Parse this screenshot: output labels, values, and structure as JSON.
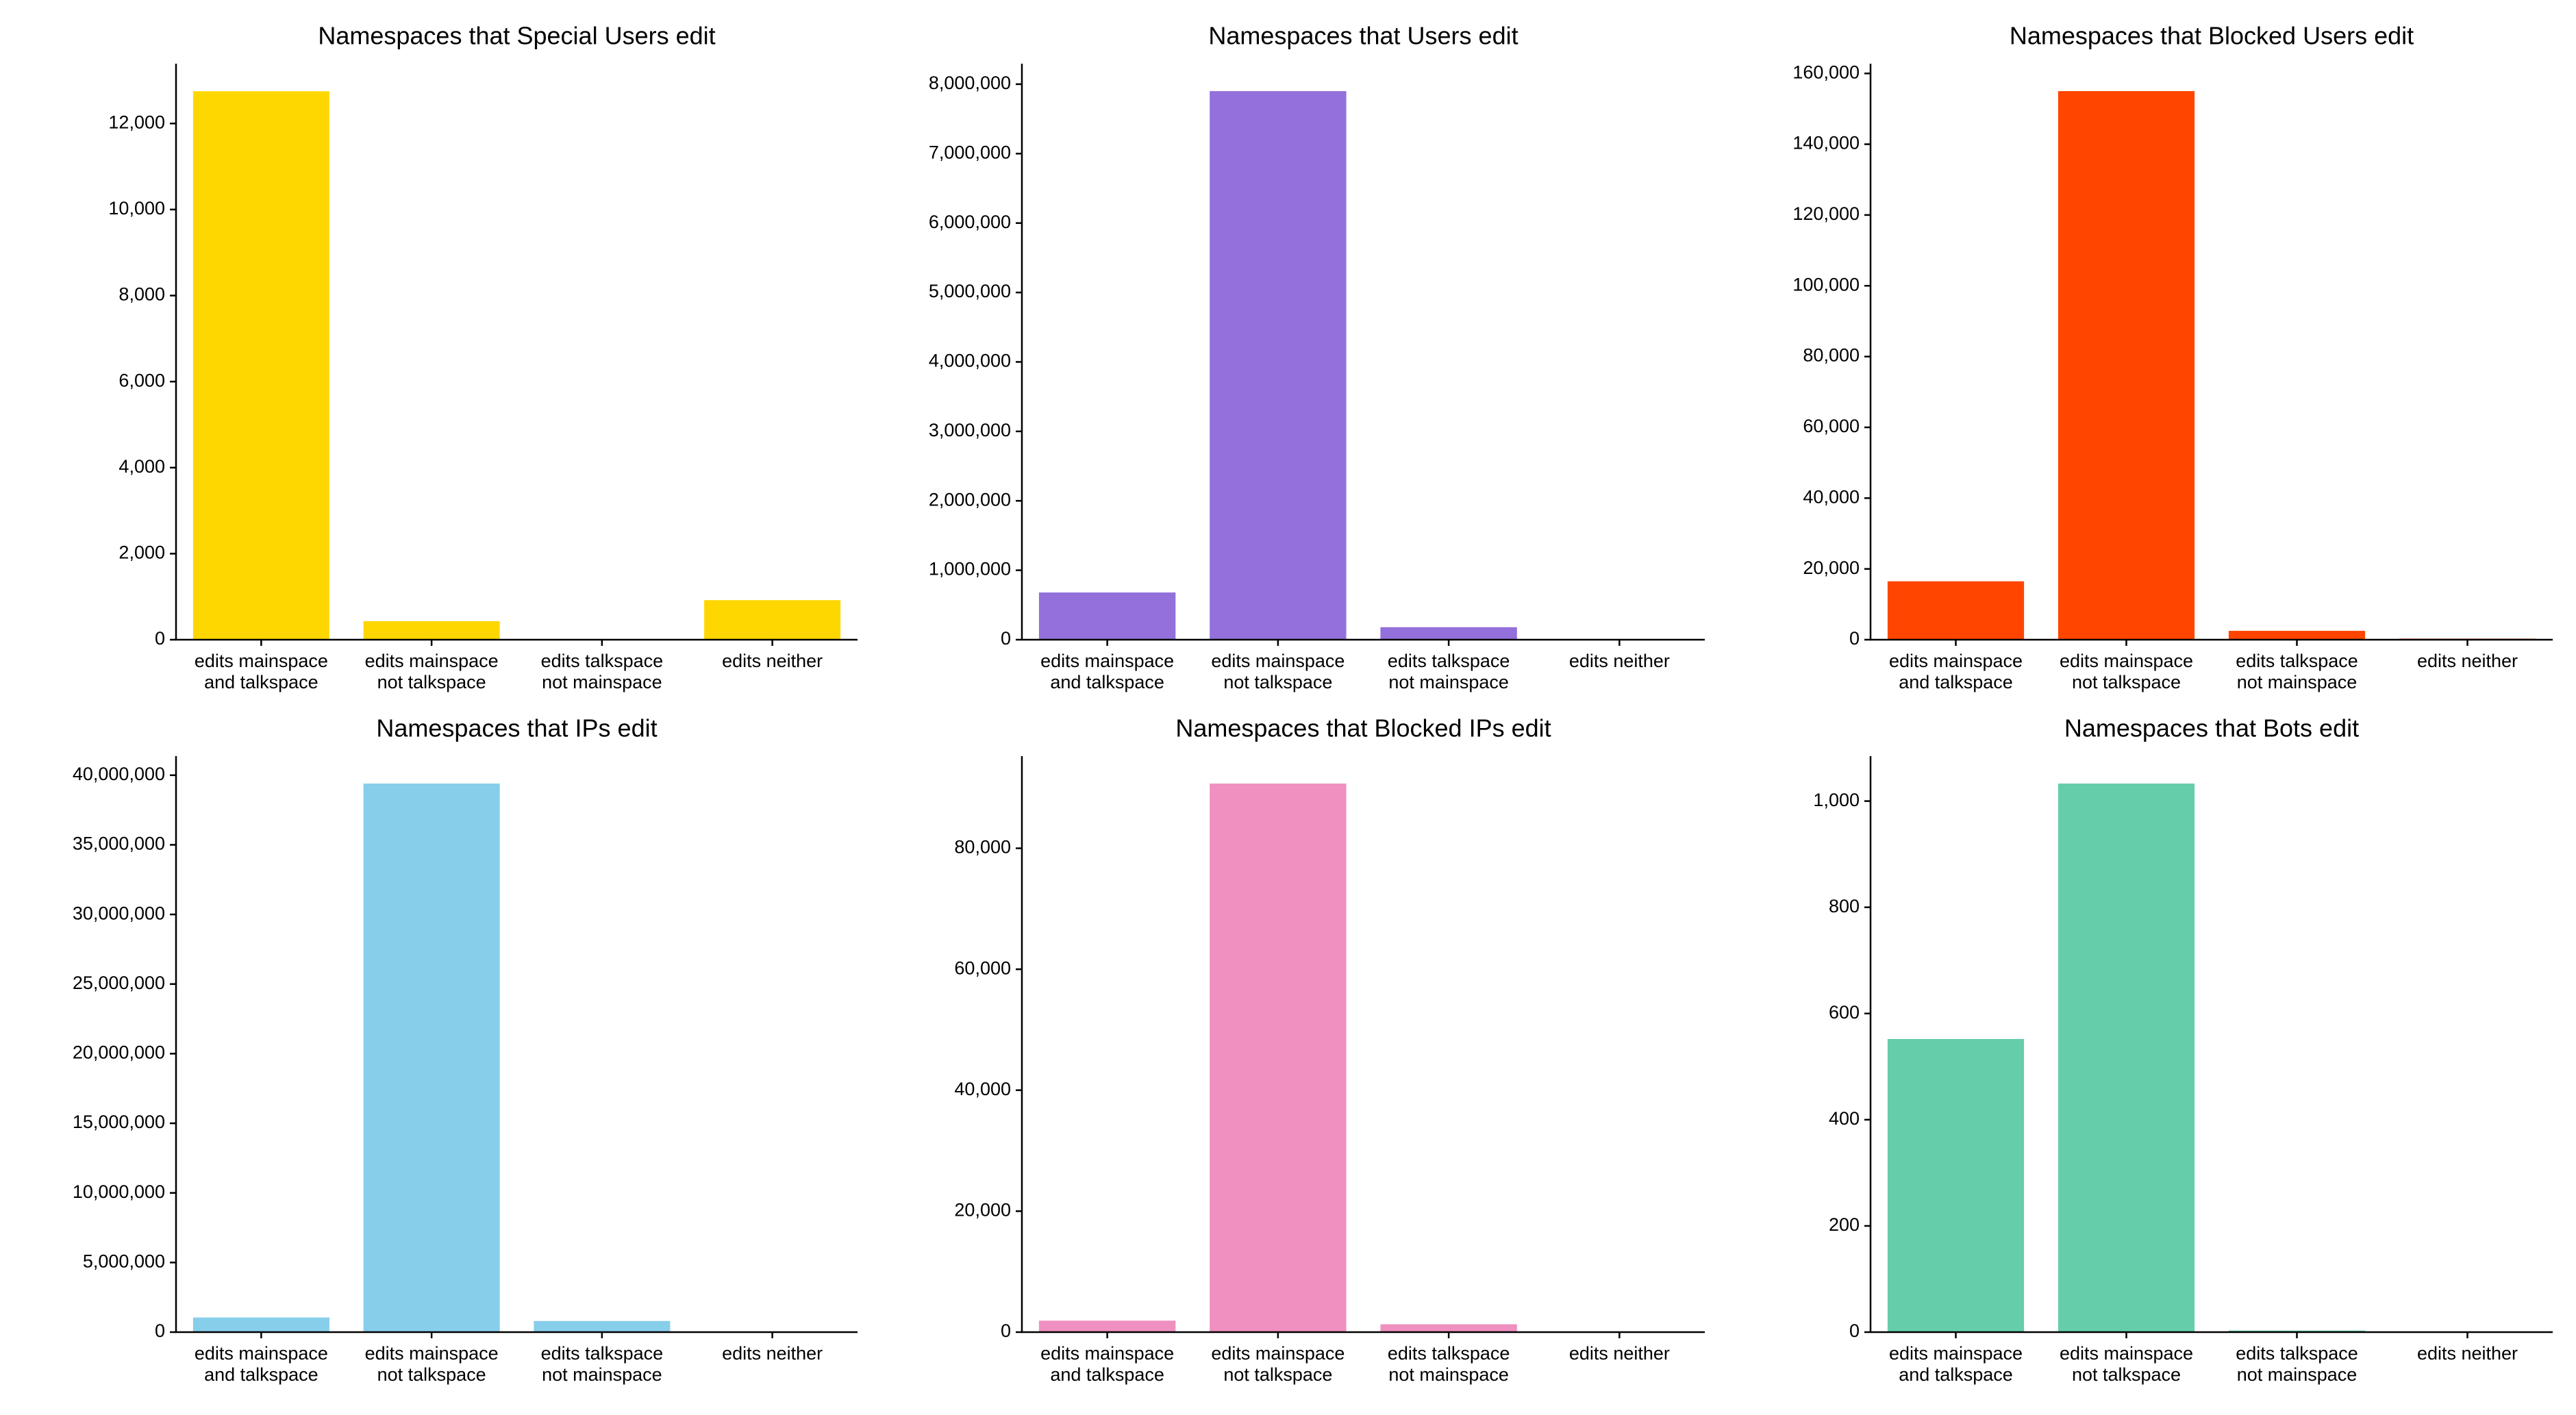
{
  "chart_data": [
    {
      "type": "bar",
      "title": "Namespaces that Special Users edit",
      "categories": [
        [
          "edits mainspace",
          "and talkspace"
        ],
        [
          "edits mainspace",
          "not talkspace"
        ],
        [
          "edits talkspace",
          "not mainspace"
        ],
        [
          "edits neither"
        ]
      ],
      "values": [
        12750,
        430,
        10,
        920
      ],
      "color": "#FFD700",
      "ylim": [
        0,
        13390
      ],
      "yticks": [
        0,
        2000,
        4000,
        6000,
        8000,
        10000,
        12000
      ],
      "ytick_labels": [
        "0",
        "2,000",
        "4,000",
        "6,000",
        "8,000",
        "10,000",
        "12,000"
      ],
      "grid": false,
      "xlabel": "",
      "ylabel": ""
    },
    {
      "type": "bar",
      "title": "Namespaces that Users edit",
      "categories": [
        [
          "edits mainspace",
          "and talkspace"
        ],
        [
          "edits mainspace",
          "not talkspace"
        ],
        [
          "edits talkspace",
          "not mainspace"
        ],
        [
          "edits neither"
        ]
      ],
      "values": [
        680000,
        7900000,
        180000,
        8000
      ],
      "color": "#9370DB",
      "ylim": [
        0,
        8295000
      ],
      "yticks": [
        0,
        1000000,
        2000000,
        3000000,
        4000000,
        5000000,
        6000000,
        7000000,
        8000000
      ],
      "ytick_labels": [
        "0",
        "1,000,000",
        "2,000,000",
        "3,000,000",
        "4,000,000",
        "5,000,000",
        "6,000,000",
        "7,000,000",
        "8,000,000"
      ],
      "grid": false,
      "xlabel": "",
      "ylabel": ""
    },
    {
      "type": "bar",
      "title": "Namespaces that Blocked Users edit",
      "categories": [
        [
          "edits mainspace",
          "and talkspace"
        ],
        [
          "edits mainspace",
          "not talkspace"
        ],
        [
          "edits talkspace",
          "not mainspace"
        ],
        [
          "edits neither"
        ]
      ],
      "values": [
        16500,
        155000,
        2500,
        300
      ],
      "color": "#FF4500",
      "ylim": [
        0,
        162750
      ],
      "yticks": [
        0,
        20000,
        40000,
        60000,
        80000,
        100000,
        120000,
        140000,
        160000
      ],
      "ytick_labels": [
        "0",
        "20,000",
        "40,000",
        "60,000",
        "80,000",
        "100,000",
        "120,000",
        "140,000",
        "160,000"
      ],
      "grid": false,
      "xlabel": "",
      "ylabel": ""
    },
    {
      "type": "bar",
      "title": "Namespaces that IPs edit",
      "categories": [
        [
          "edits mainspace",
          "and talkspace"
        ],
        [
          "edits mainspace",
          "not talkspace"
        ],
        [
          "edits talkspace",
          "not mainspace"
        ],
        [
          "edits neither"
        ]
      ],
      "values": [
        1050000,
        39400000,
        800000,
        30000
      ],
      "color": "#87CEEB",
      "ylim": [
        0,
        41370000
      ],
      "yticks": [
        0,
        5000000,
        10000000,
        15000000,
        20000000,
        25000000,
        30000000,
        35000000,
        40000000
      ],
      "ytick_labels": [
        "0",
        "5,000,000",
        "10,000,000",
        "15,000,000",
        "20,000,000",
        "25,000,000",
        "30,000,000",
        "35,000,000",
        "40,000,000"
      ],
      "grid": false,
      "xlabel": "",
      "ylabel": ""
    },
    {
      "type": "bar",
      "title": "Namespaces that Blocked IPs edit",
      "categories": [
        [
          "edits mainspace",
          "and talkspace"
        ],
        [
          "edits mainspace",
          "not talkspace"
        ],
        [
          "edits talkspace",
          "not mainspace"
        ],
        [
          "edits neither"
        ]
      ],
      "values": [
        1900,
        90700,
        1300,
        100
      ],
      "color": "#EF90C0",
      "ylim": [
        0,
        95235
      ],
      "yticks": [
        0,
        20000,
        40000,
        60000,
        80000
      ],
      "ytick_labels": [
        "0",
        "20,000",
        "40,000",
        "60,000",
        "80,000"
      ],
      "grid": false,
      "xlabel": "",
      "ylabel": ""
    },
    {
      "type": "bar",
      "title": "Namespaces that Bots edit",
      "categories": [
        [
          "edits mainspace",
          "and talkspace"
        ],
        [
          "edits mainspace",
          "not talkspace"
        ],
        [
          "edits talkspace",
          "not mainspace"
        ],
        [
          "edits neither"
        ]
      ],
      "values": [
        552,
        1033,
        3,
        1
      ],
      "color": "#66CDAA",
      "ylim": [
        0,
        1084.65
      ],
      "yticks": [
        0,
        200,
        400,
        600,
        800,
        1000
      ],
      "ytick_labels": [
        "0",
        "200",
        "400",
        "600",
        "800",
        "1,000"
      ],
      "grid": false,
      "xlabel": "",
      "ylabel": ""
    }
  ]
}
